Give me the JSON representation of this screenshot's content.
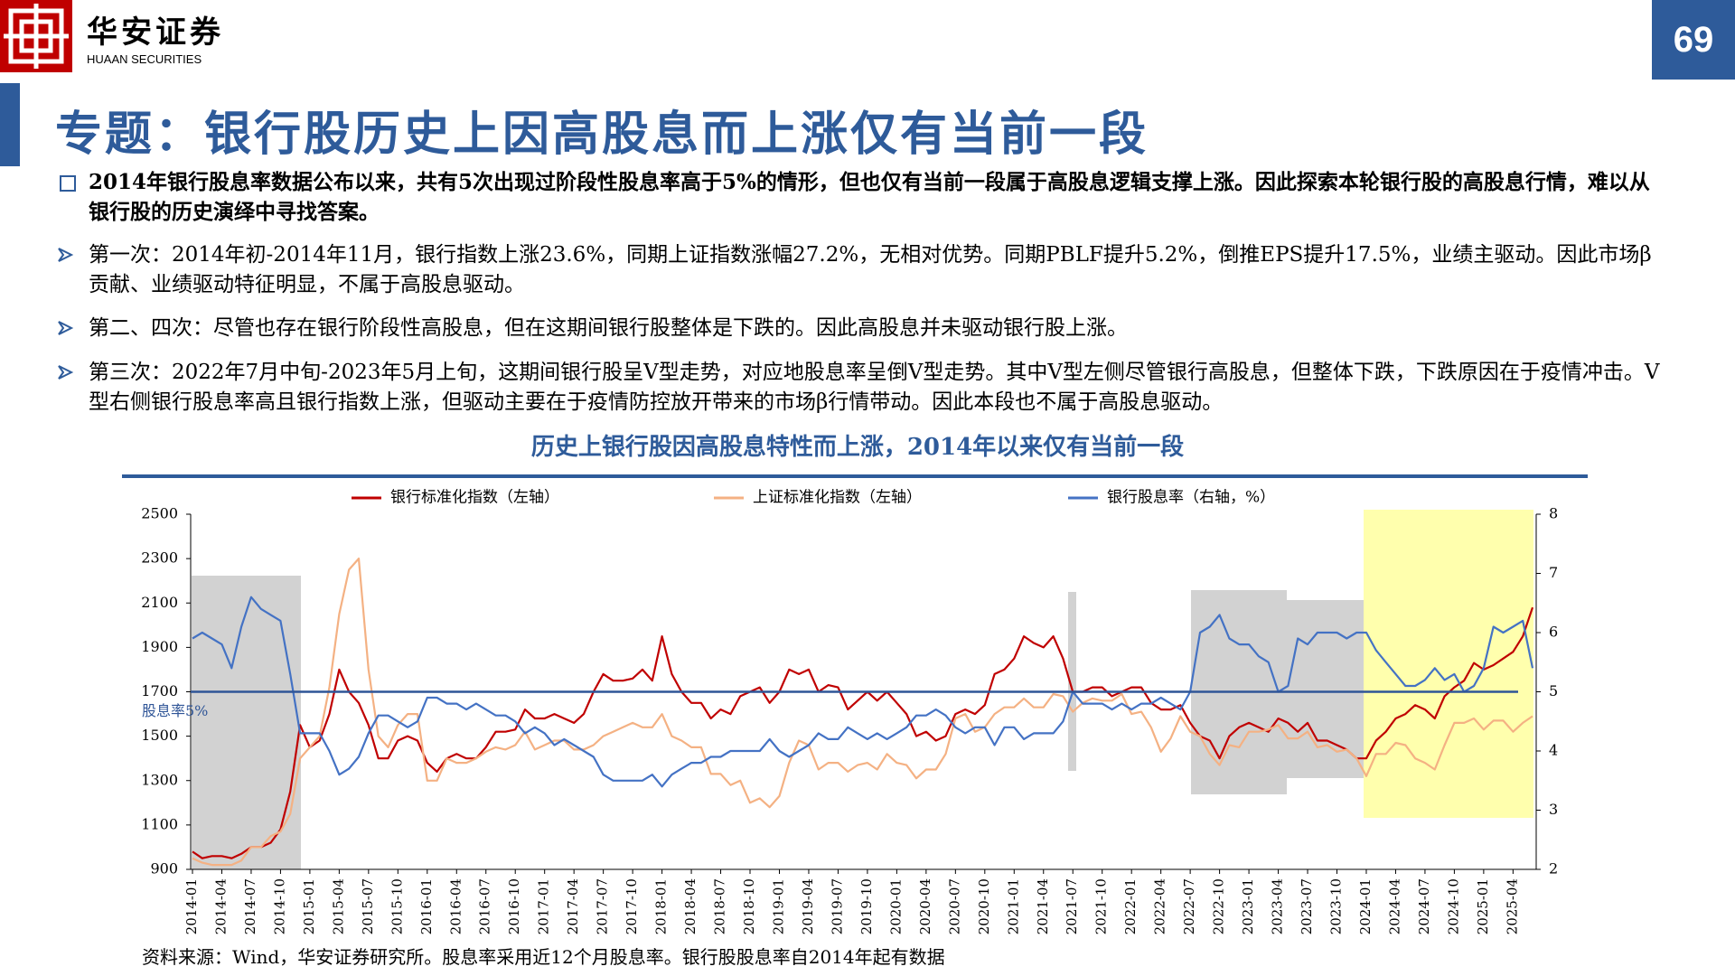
{
  "header": {
    "logo_cn": "华安证券",
    "logo_en": "HUAAN SECURITIES",
    "page_number": "69"
  },
  "title": "专题：银行股历史上因高股息而上涨仅有当前一段",
  "intro": "2014年银行股息率数据公布以来，共有5次出现过阶段性股息率高于5%的情形，但也仅有当前一段属于高股息逻辑支撑上涨。因此探索本轮银行股的高股息行情，难以从银行股的历史演绎中寻找答案。",
  "points": [
    "第一次：2014年初-2014年11月，银行指数上涨23.6%，同期上证指数涨幅27.2%，无相对优势。同期PBLF提升5.2%，倒推EPS提升17.5%，业绩主驱动。因此市场β贡献、业绩驱动特征明显，不属于高股息驱动。",
    "第二、四次：尽管也存在银行阶段性高股息，但在这期间银行股整体是下跌的。因此高股息并未驱动银行股上涨。",
    "第三次：2022年7月中旬-2023年5月上旬，这期间银行股呈V型走势，对应地股息率呈倒V型走势。其中V型左侧尽管银行高股息，但整体下跌，下跌原因在于疫情冲击。V型右侧银行股息率高且银行指数上涨，但驱动主要在于疫情防控放开带来的市场β行情带动。因此本段也不属于高股息驱动。"
  ],
  "chart_data": {
    "type": "line",
    "title": "历史上银行股因高股息特性而上涨，2014年以来仅有当前一段",
    "source": "资料来源：Wind，华安证券研究所。股息率采用近12个月股息率。银行股股息率自2014年起有数据",
    "categories": [
      "2014-01",
      null,
      null,
      "2014-04",
      null,
      null,
      "2014-07",
      null,
      null,
      "2014-10",
      null,
      null,
      "2015-01",
      null,
      null,
      "2015-04",
      null,
      null,
      "2015-07",
      null,
      null,
      "2015-10",
      null,
      null,
      "2016-01",
      null,
      null,
      "2016-04",
      null,
      null,
      "2016-07",
      null,
      null,
      "2016-10",
      null,
      null,
      "2017-01",
      null,
      null,
      "2017-04",
      null,
      null,
      "2017-07",
      null,
      null,
      "2017-10",
      null,
      null,
      "2018-01",
      null,
      null,
      "2018-04",
      null,
      null,
      "2018-07",
      null,
      null,
      "2018-10",
      null,
      null,
      "2019-01",
      null,
      null,
      "2019-04",
      null,
      null,
      "2019-07",
      null,
      null,
      "2019-10",
      null,
      null,
      "2020-01",
      null,
      null,
      "2020-04",
      null,
      null,
      "2020-07",
      null,
      null,
      "2020-10",
      null,
      null,
      "2021-01",
      null,
      null,
      "2021-04",
      null,
      null,
      "2021-07",
      null,
      null,
      "2021-10",
      null,
      null,
      "2022-01",
      null,
      null,
      "2022-04",
      null,
      null,
      "2022-07",
      null,
      null,
      "2022-10",
      null,
      null,
      "2023-01",
      null,
      null,
      "2023-04",
      null,
      null,
      "2023-07",
      null,
      null,
      "2023-10",
      null,
      null,
      "2024-01",
      null,
      null,
      "2024-04",
      null,
      null,
      "2024-07",
      null,
      null,
      "2024-10",
      null,
      null,
      "2025-01",
      null,
      null,
      "2025-04",
      null,
      null
    ],
    "series": [
      {
        "name": "银行标准化指数（左轴）",
        "color": "#c00000",
        "axis": "y",
        "values": [
          980,
          950,
          960,
          960,
          950,
          970,
          1000,
          1000,
          1020,
          1080,
          1250,
          1550,
          1450,
          1480,
          1600,
          1800,
          1700,
          1650,
          1550,
          1400,
          1400,
          1480,
          1500,
          1480,
          1380,
          1340,
          1400,
          1420,
          1400,
          1400,
          1450,
          1520,
          1520,
          1530,
          1620,
          1580,
          1580,
          1600,
          1580,
          1560,
          1600,
          1700,
          1780,
          1750,
          1750,
          1760,
          1800,
          1750,
          1950,
          1780,
          1700,
          1650,
          1650,
          1580,
          1620,
          1600,
          1680,
          1700,
          1720,
          1650,
          1700,
          1800,
          1780,
          1800,
          1700,
          1730,
          1720,
          1620,
          1660,
          1700,
          1660,
          1700,
          1650,
          1600,
          1500,
          1520,
          1480,
          1500,
          1600,
          1620,
          1600,
          1640,
          1780,
          1800,
          1850,
          1950,
          1920,
          1900,
          1950,
          1850,
          1700,
          1700,
          1720,
          1720,
          1680,
          1700,
          1720,
          1720,
          1650,
          1620,
          1620,
          1640,
          1560,
          1500,
          1480,
          1400,
          1500,
          1540,
          1560,
          1540,
          1520,
          1580,
          1560,
          1520,
          1560,
          1480,
          1480,
          1460,
          1440,
          1400,
          1400,
          1480,
          1520,
          1580,
          1600,
          1640,
          1620,
          1580,
          1680,
          1720,
          1750,
          1830,
          1800,
          1820,
          1850,
          1880,
          1950,
          2080
        ]
      },
      {
        "name": "上证标准化指数（左轴）",
        "color": "#f4b183",
        "axis": "y",
        "values": [
          950,
          930,
          920,
          920,
          920,
          940,
          1000,
          1000,
          1050,
          1070,
          1150,
          1400,
          1450,
          1500,
          1720,
          2050,
          2250,
          2300,
          1800,
          1500,
          1450,
          1550,
          1600,
          1600,
          1300,
          1300,
          1400,
          1380,
          1380,
          1400,
          1430,
          1450,
          1440,
          1460,
          1520,
          1440,
          1460,
          1480,
          1480,
          1440,
          1440,
          1460,
          1500,
          1520,
          1540,
          1560,
          1540,
          1540,
          1600,
          1500,
          1480,
          1450,
          1450,
          1330,
          1330,
          1280,
          1300,
          1200,
          1220,
          1180,
          1230,
          1380,
          1480,
          1460,
          1350,
          1380,
          1380,
          1340,
          1370,
          1380,
          1350,
          1420,
          1380,
          1370,
          1310,
          1350,
          1350,
          1420,
          1580,
          1600,
          1520,
          1540,
          1600,
          1630,
          1630,
          1670,
          1630,
          1630,
          1690,
          1680,
          1610,
          1650,
          1670,
          1660,
          1660,
          1690,
          1600,
          1610,
          1540,
          1430,
          1490,
          1590,
          1520,
          1500,
          1420,
          1370,
          1460,
          1450,
          1520,
          1520,
          1530,
          1550,
          1490,
          1490,
          1520,
          1450,
          1460,
          1430,
          1440,
          1400,
          1320,
          1420,
          1420,
          1470,
          1460,
          1400,
          1380,
          1350,
          1460,
          1560,
          1560,
          1580,
          1530,
          1570,
          1570,
          1520,
          1560,
          1590
        ]
      },
      {
        "name": "银行股息率（右轴，%）",
        "color": "#4472c4",
        "axis": "y2",
        "values": [
          5.9,
          6.0,
          5.9,
          5.8,
          5.4,
          6.1,
          6.6,
          6.4,
          6.3,
          6.2,
          5.3,
          4.3,
          4.3,
          4.3,
          4.0,
          3.6,
          3.7,
          3.9,
          4.3,
          4.6,
          4.6,
          4.5,
          4.4,
          4.5,
          4.9,
          4.9,
          4.8,
          4.8,
          4.7,
          4.8,
          4.7,
          4.6,
          4.6,
          4.5,
          4.3,
          4.4,
          4.3,
          4.1,
          4.2,
          4.1,
          4.0,
          3.9,
          3.6,
          3.5,
          3.5,
          3.5,
          3.5,
          3.6,
          3.4,
          3.6,
          3.7,
          3.8,
          3.8,
          3.9,
          3.9,
          4.0,
          4.0,
          4.0,
          4.0,
          4.2,
          4.0,
          3.9,
          4.0,
          4.1,
          4.3,
          4.2,
          4.2,
          4.4,
          4.3,
          4.2,
          4.3,
          4.2,
          4.3,
          4.4,
          4.6,
          4.6,
          4.7,
          4.6,
          4.4,
          4.3,
          4.4,
          4.4,
          4.1,
          4.4,
          4.4,
          4.2,
          4.3,
          4.3,
          4.3,
          4.5,
          5.0,
          4.8,
          4.8,
          4.8,
          4.7,
          4.8,
          4.7,
          4.8,
          4.8,
          4.9,
          4.8,
          4.7,
          5.0,
          6.0,
          6.1,
          6.3,
          5.9,
          5.8,
          5.8,
          5.6,
          5.5,
          5.0,
          5.1,
          5.9,
          5.8,
          6.0,
          6.0,
          6.0,
          5.9,
          6.0,
          6.0,
          5.7,
          5.5,
          5.3,
          5.1,
          5.1,
          5.2,
          5.4,
          5.2,
          5.3,
          5.0,
          5.1,
          5.4,
          6.1,
          6.0,
          6.1,
          6.2,
          5.4
        ]
      }
    ],
    "ylim": [
      900,
      2500
    ],
    "yticks": [
      900,
      1100,
      1300,
      1500,
      1700,
      1900,
      2100,
      2300,
      2500
    ],
    "y2lim": [
      2,
      8
    ],
    "y2ticks": [
      2,
      3,
      4,
      5,
      6,
      7,
      8
    ],
    "reference_line": {
      "value": 5,
      "axis": "y2",
      "label": "股息率5%",
      "color": "#2f5597"
    }
  }
}
